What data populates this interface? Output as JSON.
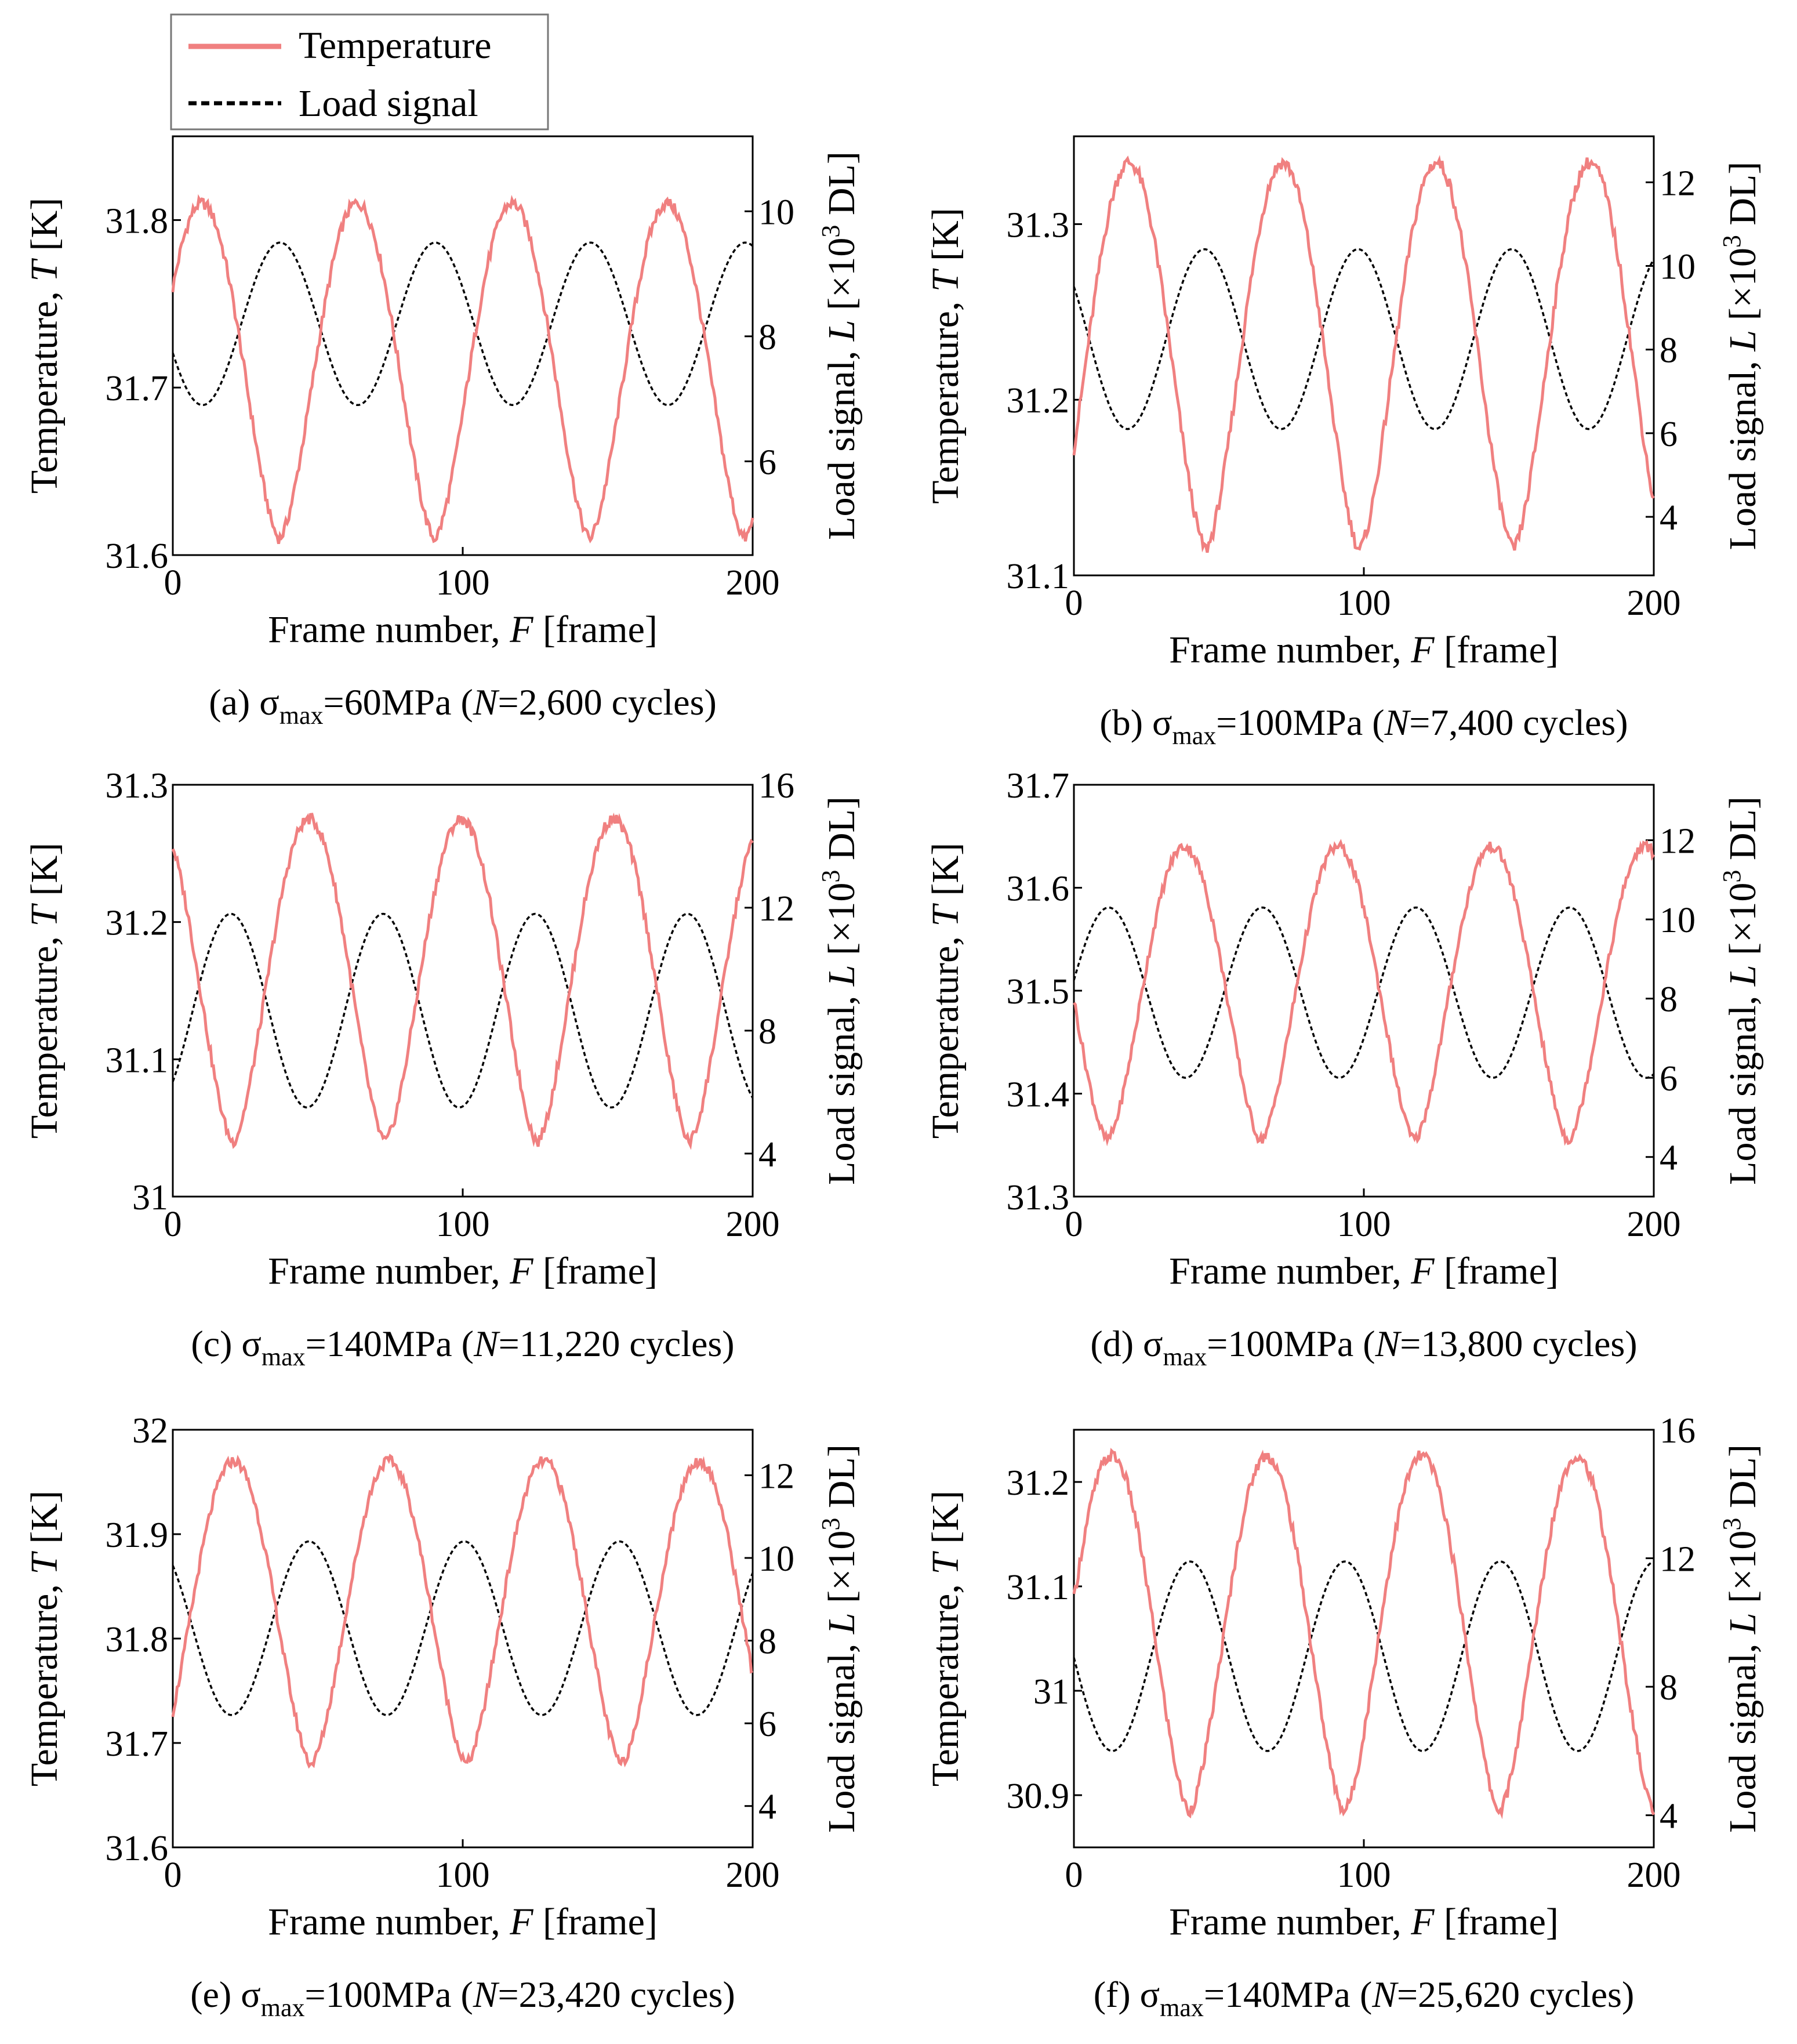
{
  "legend": {
    "temperature_label": "Temperature",
    "load_label": "Load signal",
    "temperature_color": "#f08080",
    "load_color": "#000000",
    "load_style": "dashed",
    "placement": "top-left"
  },
  "axis_labels": {
    "x": "Frame number, ",
    "x_var": "F",
    "x_unit": " [frame]",
    "y_left": "Temperature, ",
    "y_left_var": "T",
    "y_left_unit": " [K]",
    "y_right": "Load signal, ",
    "y_right_var": "L",
    "y_right_unit_pre": " [×10",
    "y_right_unit_exp": "3",
    "y_right_unit_post": " DL]"
  },
  "chart_data": [
    {
      "type": "line",
      "caption": {
        "label": "(a) ",
        "sigma": "σ",
        "sub": "max",
        "stress": "=60MPa (",
        "nvar": "N",
        "cycles": "=2,600 cycles)"
      },
      "xlim": [
        0,
        200
      ],
      "x_ticks": [
        "0",
        "100",
        "200"
      ],
      "ylim_left": [
        31.6,
        31.85
      ],
      "y_left_ticks": [
        [
          31.6,
          "31.6"
        ],
        [
          31.7,
          "31.7"
        ],
        [
          31.8,
          "31.8"
        ]
      ],
      "ylim_right": [
        4.5,
        11.2
      ],
      "y_right_ticks": [
        [
          6,
          "6"
        ],
        [
          8,
          "8"
        ],
        [
          10,
          "10"
        ]
      ],
      "temperature": {
        "period": 53.5,
        "phase": 10,
        "max": 31.81,
        "min": 31.61
      },
      "load": {
        "period": 53.5,
        "phase": 37,
        "max": 9.5,
        "min": 6.9
      }
    },
    {
      "type": "line",
      "caption": {
        "label": "(b) ",
        "sigma": "σ",
        "sub": "max",
        "stress": "=100MPa (",
        "nvar": "N",
        "cycles": "=7,400 cycles)"
      },
      "xlim": [
        0,
        200
      ],
      "x_ticks": [
        "0",
        "100",
        "200"
      ],
      "ylim_left": [
        31.1,
        31.35
      ],
      "y_left_ticks": [
        [
          31.1,
          "31.1"
        ],
        [
          31.2,
          "31.2"
        ],
        [
          31.3,
          "31.3"
        ]
      ],
      "ylim_right": [
        2.6,
        13.1
      ],
      "y_right_ticks": [
        [
          4,
          "4"
        ],
        [
          6,
          "6"
        ],
        [
          8,
          "8"
        ],
        [
          10,
          "10"
        ],
        [
          12,
          "12"
        ]
      ],
      "temperature": {
        "period": 53,
        "phase": 19,
        "max": 31.335,
        "min": 31.115
      },
      "load": {
        "period": 53,
        "phase": 45,
        "max": 10.4,
        "min": 6.1
      }
    },
    {
      "type": "line",
      "caption": {
        "label": "(c) ",
        "sigma": "σ",
        "sub": "max",
        "stress": "=140MPa (",
        "nvar": "N",
        "cycles": "=11,220 cycles)"
      },
      "xlim": [
        0,
        200
      ],
      "x_ticks": [
        "0",
        "100",
        "200"
      ],
      "ylim_left": [
        31.0,
        31.3
      ],
      "y_left_ticks": [
        [
          31.0,
          "31"
        ],
        [
          31.1,
          "31.1"
        ],
        [
          31.2,
          "31.2"
        ],
        [
          31.3,
          "31.3"
        ]
      ],
      "ylim_right": [
        2.6,
        16
      ],
      "y_right_ticks": [
        [
          4,
          "4"
        ],
        [
          8,
          "8"
        ],
        [
          12,
          "12"
        ],
        [
          16,
          "16"
        ]
      ],
      "temperature": {
        "period": 52.5,
        "phase": 47,
        "max": 31.275,
        "min": 31.04
      },
      "load": {
        "period": 52.5,
        "phase": 20,
        "max": 11.8,
        "min": 5.5
      }
    },
    {
      "type": "line",
      "caption": {
        "label": "(d) ",
        "sigma": "σ",
        "sub": "max",
        "stress": "=100MPa (",
        "nvar": "N",
        "cycles": "=13,800 cycles)"
      },
      "xlim": [
        0,
        200
      ],
      "x_ticks": [
        "0",
        "100",
        "200"
      ],
      "ylim_left": [
        31.3,
        31.7
      ],
      "y_left_ticks": [
        [
          31.3,
          "31.3"
        ],
        [
          31.4,
          "31.4"
        ],
        [
          31.5,
          "31.5"
        ],
        [
          31.6,
          "31.6"
        ],
        [
          31.7,
          "31.7"
        ]
      ],
      "ylim_right": [
        3.0,
        13.4
      ],
      "y_right_ticks": [
        [
          4,
          "4"
        ],
        [
          6,
          "6"
        ],
        [
          8,
          "8"
        ],
        [
          10,
          "10"
        ],
        [
          12,
          "12"
        ]
      ],
      "temperature": {
        "period": 53,
        "phase": 38,
        "max": 31.64,
        "min": 31.355
      },
      "load": {
        "period": 53,
        "phase": 12,
        "max": 10.3,
        "min": 6.0
      }
    },
    {
      "type": "line",
      "caption": {
        "label": "(e) ",
        "sigma": "σ",
        "sub": "max",
        "stress": "=100MPa (",
        "nvar": "N",
        "cycles": "=23,420 cycles)"
      },
      "xlim": [
        0,
        200
      ],
      "x_ticks": [
        "0",
        "100",
        "200"
      ],
      "ylim_left": [
        31.6,
        32.0
      ],
      "y_left_ticks": [
        [
          31.6,
          "31.6"
        ],
        [
          31.7,
          "31.7"
        ],
        [
          31.8,
          "31.8"
        ],
        [
          31.9,
          "31.9"
        ],
        [
          32.0,
          "32"
        ]
      ],
      "ylim_right": [
        3.0,
        13.1
      ],
      "y_right_ticks": [
        [
          4,
          "4"
        ],
        [
          6,
          "6"
        ],
        [
          8,
          "8"
        ],
        [
          10,
          "10"
        ],
        [
          12,
          "12"
        ]
      ],
      "temperature": {
        "period": 53.5,
        "phase": 21,
        "max": 31.97,
        "min": 31.68
      },
      "load": {
        "period": 53.5,
        "phase": 47,
        "max": 10.4,
        "min": 6.2
      }
    },
    {
      "type": "line",
      "caption": {
        "label": "(f) ",
        "sigma": "σ",
        "sub": "max",
        "stress": "=140MPa (",
        "nvar": "N",
        "cycles": "=25,620 cycles)"
      },
      "xlim": [
        0,
        200
      ],
      "x_ticks": [
        "0",
        "100",
        "200"
      ],
      "ylim_left": [
        30.85,
        31.25
      ],
      "y_left_ticks": [
        [
          30.9,
          "30.9"
        ],
        [
          31.0,
          "31"
        ],
        [
          31.1,
          "31.1"
        ],
        [
          31.2,
          "31.2"
        ]
      ],
      "ylim_right": [
        3.0,
        16.0
      ],
      "y_right_ticks": [
        [
          4,
          "4"
        ],
        [
          8,
          "8"
        ],
        [
          12,
          "12"
        ],
        [
          16,
          "16"
        ]
      ],
      "temperature": {
        "period": 53.5,
        "phase": 13,
        "max": 31.225,
        "min": 30.885
      },
      "load": {
        "period": 53.5,
        "phase": 40,
        "max": 11.9,
        "min": 6.0
      }
    }
  ]
}
